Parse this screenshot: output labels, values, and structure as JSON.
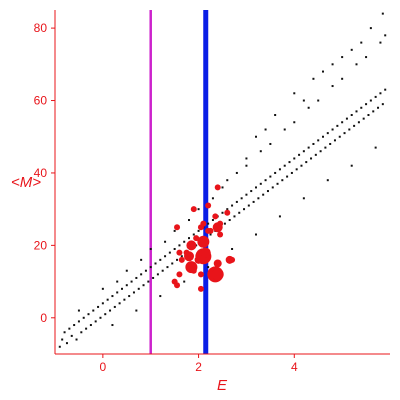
{
  "chart_data": {
    "type": "scatter",
    "title": "",
    "xlabel": "E",
    "ylabel": "<M>",
    "xlim": [
      -1.0,
      6.0
    ],
    "ylim": [
      -10,
      85
    ],
    "x_ticks": [
      0,
      2,
      4
    ],
    "y_ticks": [
      0,
      20,
      40,
      60,
      80
    ],
    "grid": false,
    "axis_color": "#e8141a",
    "vertical_lines": [
      {
        "x": 1.0,
        "color": "#cc22cc"
      },
      {
        "x": 2.15,
        "color": "#0a1ee6"
      }
    ],
    "series": [
      {
        "color": "#111111",
        "marker": "dot",
        "points": [
          [
            -0.9,
            -8
          ],
          [
            -0.85,
            -6
          ],
          [
            -0.8,
            -4
          ],
          [
            -0.75,
            -7
          ],
          [
            -0.7,
            -3
          ],
          [
            -0.65,
            -5
          ],
          [
            -0.6,
            -2
          ],
          [
            -0.55,
            -6
          ],
          [
            -0.5,
            -1
          ],
          [
            -0.45,
            -4
          ],
          [
            -0.4,
            0
          ],
          [
            -0.35,
            -3
          ],
          [
            -0.3,
            1
          ],
          [
            -0.25,
            -2
          ],
          [
            -0.2,
            2
          ],
          [
            -0.15,
            -1
          ],
          [
            -0.1,
            3
          ],
          [
            -0.05,
            0
          ],
          [
            0.0,
            4
          ],
          [
            0.05,
            1
          ],
          [
            0.1,
            5
          ],
          [
            0.15,
            2
          ],
          [
            0.2,
            6
          ],
          [
            0.25,
            3
          ],
          [
            0.3,
            7
          ],
          [
            0.35,
            4
          ],
          [
            0.4,
            8
          ],
          [
            0.45,
            5
          ],
          [
            0.5,
            9
          ],
          [
            0.55,
            6
          ],
          [
            0.6,
            10
          ],
          [
            0.65,
            7
          ],
          [
            0.7,
            11
          ],
          [
            0.75,
            8
          ],
          [
            0.8,
            12
          ],
          [
            0.85,
            9
          ],
          [
            0.9,
            13
          ],
          [
            0.95,
            10
          ],
          [
            1.0,
            14
          ],
          [
            1.05,
            11
          ],
          [
            1.1,
            15
          ],
          [
            1.15,
            12
          ],
          [
            1.2,
            16
          ],
          [
            1.25,
            13
          ],
          [
            1.3,
            17
          ],
          [
            1.35,
            14
          ],
          [
            1.4,
            18
          ],
          [
            1.45,
            15
          ],
          [
            1.5,
            19
          ],
          [
            1.55,
            16
          ],
          [
            1.6,
            20
          ],
          [
            1.65,
            17
          ],
          [
            1.7,
            21
          ],
          [
            1.75,
            18
          ],
          [
            1.8,
            22
          ],
          [
            1.85,
            19
          ],
          [
            1.9,
            23
          ],
          [
            1.95,
            20
          ],
          [
            2.0,
            24
          ],
          [
            2.05,
            21
          ],
          [
            2.1,
            25
          ],
          [
            2.15,
            22
          ],
          [
            2.2,
            26
          ],
          [
            2.25,
            23
          ],
          [
            2.3,
            27
          ],
          [
            2.35,
            24
          ],
          [
            2.4,
            28
          ],
          [
            2.45,
            25
          ],
          [
            2.5,
            29
          ],
          [
            2.55,
            26
          ],
          [
            2.6,
            30
          ],
          [
            2.65,
            27
          ],
          [
            2.7,
            31
          ],
          [
            2.75,
            28
          ],
          [
            2.8,
            32
          ],
          [
            2.85,
            29
          ],
          [
            2.9,
            33
          ],
          [
            2.95,
            30
          ],
          [
            3.0,
            34
          ],
          [
            3.05,
            31
          ],
          [
            3.1,
            35
          ],
          [
            3.15,
            32
          ],
          [
            3.2,
            36
          ],
          [
            3.25,
            33
          ],
          [
            3.3,
            37
          ],
          [
            3.35,
            34
          ],
          [
            3.4,
            38
          ],
          [
            3.45,
            35
          ],
          [
            3.5,
            39
          ],
          [
            3.55,
            36
          ],
          [
            3.6,
            40
          ],
          [
            3.65,
            37
          ],
          [
            3.7,
            41
          ],
          [
            3.75,
            38
          ],
          [
            3.8,
            42
          ],
          [
            3.85,
            39
          ],
          [
            3.9,
            43
          ],
          [
            3.95,
            40
          ],
          [
            4.0,
            44
          ],
          [
            4.05,
            41
          ],
          [
            4.1,
            45
          ],
          [
            4.15,
            42
          ],
          [
            4.2,
            46
          ],
          [
            4.25,
            43
          ],
          [
            4.3,
            47
          ],
          [
            4.35,
            44
          ],
          [
            4.4,
            48
          ],
          [
            4.45,
            45
          ],
          [
            4.5,
            49
          ],
          [
            4.55,
            46
          ],
          [
            4.6,
            50
          ],
          [
            4.65,
            47
          ],
          [
            4.7,
            51
          ],
          [
            4.75,
            48
          ],
          [
            4.8,
            52
          ],
          [
            4.85,
            49
          ],
          [
            4.9,
            53
          ],
          [
            4.95,
            50
          ],
          [
            5.0,
            54
          ],
          [
            5.05,
            51
          ],
          [
            5.1,
            55
          ],
          [
            5.15,
            52
          ],
          [
            5.2,
            56
          ],
          [
            5.25,
            53
          ],
          [
            5.3,
            57
          ],
          [
            5.35,
            54
          ],
          [
            5.4,
            58
          ],
          [
            5.45,
            55
          ],
          [
            5.5,
            59
          ],
          [
            5.55,
            56
          ],
          [
            5.6,
            60
          ],
          [
            5.65,
            57
          ],
          [
            5.7,
            61
          ],
          [
            5.75,
            58
          ],
          [
            5.8,
            62
          ],
          [
            5.85,
            59
          ],
          [
            5.9,
            63
          ],
          [
            -0.5,
            2
          ],
          [
            0.0,
            8
          ],
          [
            0.5,
            13
          ],
          [
            1.0,
            19
          ],
          [
            1.5,
            24
          ],
          [
            2.0,
            30
          ],
          [
            2.5,
            36
          ],
          [
            3.0,
            42
          ],
          [
            3.5,
            48
          ],
          [
            4.0,
            54
          ],
          [
            4.5,
            60
          ],
          [
            5.0,
            66
          ],
          [
            5.5,
            72
          ],
          [
            5.9,
            78
          ],
          [
            0.3,
            10
          ],
          [
            0.8,
            16
          ],
          [
            1.3,
            21
          ],
          [
            1.8,
            27
          ],
          [
            2.3,
            33
          ],
          [
            2.8,
            40
          ],
          [
            3.3,
            46
          ],
          [
            3.8,
            52
          ],
          [
            4.3,
            58
          ],
          [
            4.8,
            64
          ],
          [
            5.3,
            70
          ],
          [
            5.8,
            76
          ],
          [
            0.2,
            -2
          ],
          [
            0.7,
            2
          ],
          [
            1.2,
            6
          ],
          [
            1.7,
            10
          ],
          [
            2.2,
            14
          ],
          [
            2.7,
            19
          ],
          [
            3.2,
            23
          ],
          [
            3.7,
            28
          ],
          [
            4.2,
            33
          ],
          [
            4.7,
            38
          ],
          [
            5.2,
            42
          ],
          [
            5.7,
            47
          ],
          [
            3.2,
            50
          ],
          [
            3.6,
            56
          ],
          [
            4.0,
            62
          ],
          [
            4.4,
            66
          ],
          [
            4.8,
            70
          ],
          [
            5.2,
            74
          ],
          [
            5.6,
            80
          ],
          [
            5.85,
            84
          ],
          [
            2.6,
            38
          ],
          [
            3.0,
            44
          ],
          [
            3.4,
            52
          ],
          [
            4.2,
            60
          ],
          [
            4.6,
            68
          ],
          [
            5.0,
            72
          ],
          [
            5.4,
            76
          ]
        ]
      },
      {
        "color": "#e8141a",
        "marker": "circle",
        "points": [
          [
            1.9,
            30,
            3
          ],
          [
            2.05,
            25,
            3
          ],
          [
            2.1,
            26,
            3
          ],
          [
            2.35,
            28,
            3
          ],
          [
            2.4,
            36,
            3
          ],
          [
            2.45,
            26,
            3
          ],
          [
            2.6,
            29,
            3
          ],
          [
            1.75,
            18,
            3
          ],
          [
            1.85,
            20,
            5
          ],
          [
            1.95,
            22,
            3
          ],
          [
            2.1,
            21,
            6
          ],
          [
            2.0,
            16,
            4
          ],
          [
            2.1,
            17,
            8
          ],
          [
            2.15,
            18,
            5
          ],
          [
            1.8,
            17,
            5
          ],
          [
            1.9,
            13,
            3
          ],
          [
            1.65,
            16,
            3
          ],
          [
            1.6,
            12,
            3
          ],
          [
            1.5,
            10,
            3
          ],
          [
            1.55,
            9,
            3
          ],
          [
            1.85,
            14,
            6
          ],
          [
            2.4,
            15,
            4
          ],
          [
            2.35,
            12,
            8
          ],
          [
            2.4,
            12,
            6
          ],
          [
            2.65,
            16,
            4
          ],
          [
            2.7,
            16,
            3
          ],
          [
            2.4,
            25,
            5
          ],
          [
            2.25,
            24,
            3
          ],
          [
            1.55,
            25,
            3
          ],
          [
            1.6,
            18,
            3
          ],
          [
            2.2,
            24,
            3
          ],
          [
            2.05,
            8,
            3
          ],
          [
            2.2,
            31,
            3
          ],
          [
            2.45,
            23,
            3
          ],
          [
            2.05,
            12,
            3
          ]
        ]
      }
    ]
  }
}
